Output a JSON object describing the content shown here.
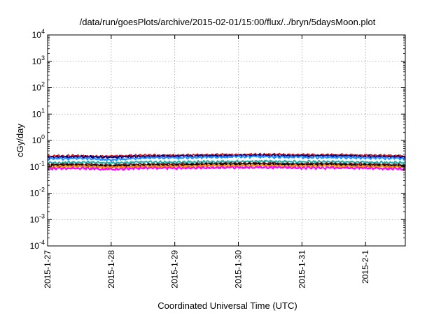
{
  "chart_data": {
    "type": "line",
    "title": "/data/run/goesPlots/archive/2015-02-01/15:00/flux/../bryn/5daysMoon.plot",
    "xlabel": "Coordinated Universal Time (UTC)",
    "ylabel": "cGy/day",
    "xlim": [
      "2015-01-27",
      "2015-02-01 15:00"
    ],
    "ylim": [
      0.0001,
      10000
    ],
    "yscale": "log",
    "grid": true,
    "x_ticks": [
      "2015-1-27",
      "2015-1-28",
      "2015-1-29",
      "2015-1-30",
      "2015-1-31",
      "2015-2-1"
    ],
    "y_ticks": [
      {
        "base": "10",
        "exp": "4"
      },
      {
        "base": "10",
        "exp": "3"
      },
      {
        "base": "10",
        "exp": "2"
      },
      {
        "base": "10",
        "exp": "1"
      },
      {
        "base": "10",
        "exp": "0"
      },
      {
        "base": "10",
        "exp": "-1"
      },
      {
        "base": "10",
        "exp": "-2"
      },
      {
        "base": "10",
        "exp": "-3"
      },
      {
        "base": "10",
        "exp": "-4"
      }
    ],
    "x": [
      "2015-01-27",
      "2015-01-27 12:00",
      "2015-01-28",
      "2015-01-28 12:00",
      "2015-01-29",
      "2015-01-29 12:00",
      "2015-01-30",
      "2015-01-30 12:00",
      "2015-01-31",
      "2015-01-31 12:00",
      "2015-02-01",
      "2015-02-01 12:00",
      "2015-02-01 15:00"
    ],
    "series": [
      {
        "color": "#e41a1c",
        "values": [
          0.25,
          0.26,
          0.25,
          0.27,
          0.27,
          0.28,
          0.29,
          0.29,
          0.28,
          0.28,
          0.27,
          0.26,
          0.25
        ]
      },
      {
        "color": "#000080",
        "values": [
          0.23,
          0.24,
          0.23,
          0.25,
          0.25,
          0.26,
          0.27,
          0.27,
          0.26,
          0.26,
          0.25,
          0.24,
          0.23
        ]
      },
      {
        "color": "#1e90ff",
        "values": [
          0.2,
          0.21,
          0.18,
          0.22,
          0.22,
          0.23,
          0.24,
          0.24,
          0.23,
          0.23,
          0.22,
          0.21,
          0.2
        ]
      },
      {
        "color": "#20b2aa",
        "values": [
          0.14,
          0.15,
          0.14,
          0.15,
          0.15,
          0.155,
          0.16,
          0.16,
          0.155,
          0.155,
          0.15,
          0.145,
          0.14
        ]
      },
      {
        "color": "#8b1a1a",
        "values": [
          0.12,
          0.125,
          0.115,
          0.125,
          0.125,
          0.13,
          0.135,
          0.135,
          0.13,
          0.13,
          0.125,
          0.12,
          0.115
        ]
      },
      {
        "color": "#000000",
        "values": [
          0.11,
          0.115,
          0.105,
          0.115,
          0.115,
          0.12,
          0.125,
          0.125,
          0.12,
          0.12,
          0.115,
          0.11,
          0.105
        ]
      },
      {
        "color": "#ff8c00",
        "values": [
          0.1,
          0.105,
          0.095,
          0.105,
          0.105,
          0.11,
          0.112,
          0.112,
          0.108,
          0.108,
          0.105,
          0.1,
          0.095
        ]
      },
      {
        "color": "#ff00ff",
        "values": [
          0.085,
          0.09,
          0.08,
          0.09,
          0.09,
          0.092,
          0.095,
          0.095,
          0.092,
          0.092,
          0.09,
          0.085,
          0.082
        ]
      }
    ]
  }
}
